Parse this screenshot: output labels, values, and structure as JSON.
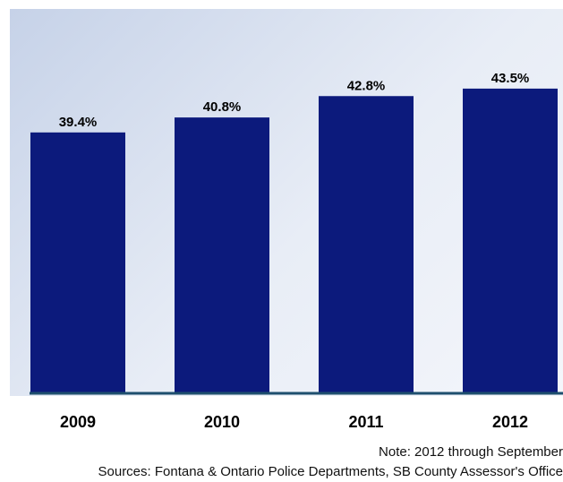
{
  "chart_data": {
    "type": "bar",
    "categories": [
      "2009",
      "2010",
      "2011",
      "2012"
    ],
    "values": [
      39.4,
      40.8,
      42.8,
      43.5
    ],
    "value_labels": [
      "39.4%",
      "40.8%",
      "42.8%",
      "43.5%"
    ],
    "title": "",
    "xlabel": "",
    "ylabel": "",
    "ylim": [
      15,
      45
    ],
    "grid": false,
    "legend": "none",
    "colors": {
      "bar": "#0c1a7c",
      "baseline": "#1e4f6e",
      "panel_start": "#c6d2e8",
      "panel_end": "#f4f6fb"
    }
  },
  "footer": {
    "note": "Note:  2012 through September",
    "sources": "Sources:  Fontana & Ontario Police Departments, SB County Assessor's Office"
  }
}
